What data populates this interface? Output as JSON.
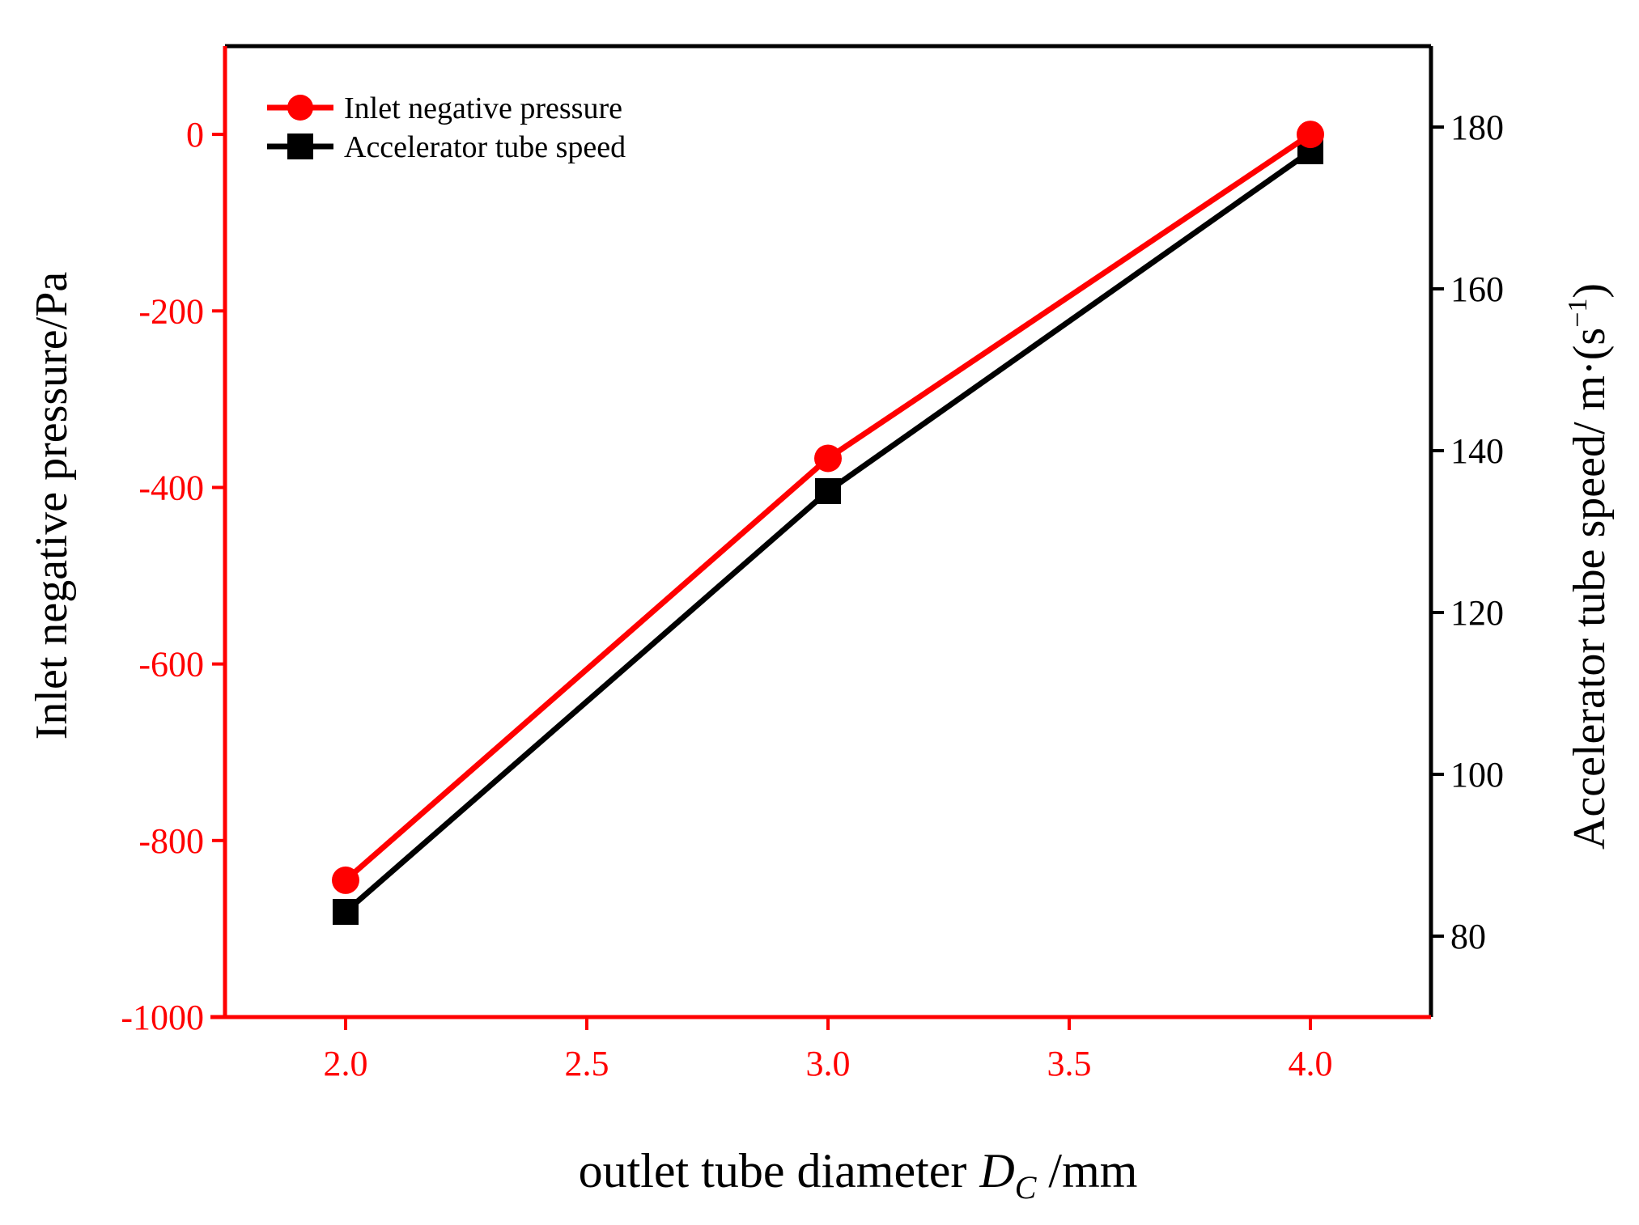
{
  "chart_data": {
    "type": "line",
    "title": "",
    "x": [
      2.0,
      3.0,
      4.0
    ],
    "xlabel": "outlet tube diameter",
    "xlabel_symbol": "D",
    "xlabel_subscript": "C",
    "xlabel_unit": " /mm",
    "xlim": [
      1.75,
      4.25
    ],
    "xticks": [
      "2.0",
      "2.5",
      "3.0",
      "3.5",
      "4.0"
    ],
    "y_left": {
      "label": "Inlet negative pressure/Pa",
      "lim": [
        -1000,
        100
      ],
      "ticks": [
        "0",
        "-200",
        "-400",
        "-600",
        "-800",
        "-1000"
      ],
      "color": "#ff0000"
    },
    "y_right": {
      "label": "Accelerator tube speed/ m·(s",
      "label_sup": "−1",
      "label_close": ")",
      "lim": [
        70,
        190
      ],
      "ticks": [
        "80",
        "100",
        "120",
        "140",
        "160",
        "180"
      ],
      "color": "#000000"
    },
    "series": [
      {
        "name": "Inlet negative pressure",
        "axis": "left",
        "values": [
          -845,
          -367,
          0
        ],
        "color": "#ff0000",
        "marker": "circle"
      },
      {
        "name": "Accelerator tube speed",
        "axis": "right",
        "values": [
          83,
          135,
          177
        ],
        "color": "#000000",
        "marker": "square"
      }
    ],
    "legend": "top-left",
    "grid": false
  }
}
